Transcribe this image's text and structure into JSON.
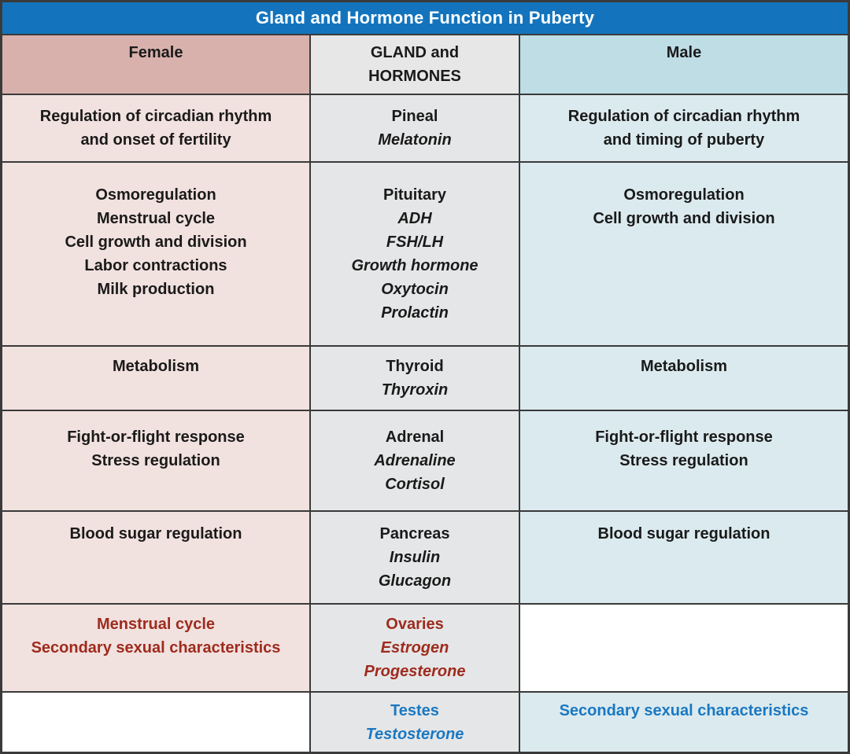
{
  "title": "Gland and Hormone Function in Puberty",
  "headers": {
    "female": "Female",
    "gland": "GLAND and\nHORMONES",
    "male": "Male"
  },
  "rows": [
    {
      "id": "pineal",
      "female": [
        "Regulation of circadian rhythm",
        "and onset of fertility"
      ],
      "gland": "Pineal",
      "hormones": [
        "Melatonin"
      ],
      "male": [
        "Regulation of circadian rhythm",
        "and timing of puberty"
      ],
      "accent": null
    },
    {
      "id": "pituitary",
      "female": [
        "Osmoregulation",
        "Menstrual cycle",
        "Cell growth and division",
        "Labor contractions",
        "Milk production"
      ],
      "gland": "Pituitary",
      "hormones": [
        "ADH",
        "FSH/LH",
        "Growth hormone",
        "Oxytocin",
        "Prolactin"
      ],
      "male": [
        "Osmoregulation",
        "Cell growth and division"
      ],
      "accent": null
    },
    {
      "id": "thyroid",
      "female": [
        "Metabolism"
      ],
      "gland": "Thyroid",
      "hormones": [
        "Thyroxin"
      ],
      "male": [
        "Metabolism"
      ],
      "accent": null
    },
    {
      "id": "adrenal",
      "female": [
        "Fight-or-flight response",
        "Stress regulation"
      ],
      "gland": "Adrenal",
      "hormones": [
        "Adrenaline",
        "Cortisol"
      ],
      "male": [
        "Fight-or-flight response",
        "Stress regulation"
      ],
      "accent": null
    },
    {
      "id": "pancreas",
      "female": [
        "Blood sugar regulation"
      ],
      "gland": "Pancreas",
      "hormones": [
        "Insulin",
        "Glucagon"
      ],
      "male": [
        "Blood sugar regulation"
      ],
      "accent": null
    },
    {
      "id": "ovaries",
      "female": [
        "Menstrual cycle",
        "Secondary sexual characteristics"
      ],
      "gland": "Ovaries",
      "hormones": [
        "Estrogen",
        "Progesterone"
      ],
      "male": [],
      "accent": "red"
    },
    {
      "id": "testes",
      "female": [],
      "gland": "Testes",
      "hormones": [
        "Testosterone"
      ],
      "male": [
        "Secondary sexual characteristics"
      ],
      "accent": "blue"
    }
  ],
  "colors": {
    "title_bg": "#1374bd",
    "title_text": "#ffffff",
    "female_header_bg": "#d9b1ac",
    "female_cell_bg": "#f1e1df",
    "gland_header_bg": "#e7e7e7",
    "gland_cell_bg": "#e5e6e7",
    "male_header_bg": "#bedde5",
    "male_cell_bg": "#dbeaee",
    "empty_cell_bg": "#ffffff",
    "grid_line": "#3a3a3a",
    "text": "#1a1a1a",
    "accent_red": "#9e2b1e",
    "accent_blue": "#1a78c2"
  },
  "chart_data": {
    "type": "table",
    "title": "Gland and Hormone Function in Puberty",
    "columns": [
      "Female",
      "GLAND and HORMONES",
      "Male"
    ],
    "rows": [
      [
        "Regulation of circadian rhythm and onset of fertility",
        "Pineal (Melatonin)",
        "Regulation of circadian rhythm and timing of puberty"
      ],
      [
        "Osmoregulation; Menstrual cycle; Cell growth and division; Labor contractions; Milk production",
        "Pituitary (ADH, FSH/LH, Growth hormone, Oxytocin, Prolactin)",
        "Osmoregulation; Cell growth and division"
      ],
      [
        "Metabolism",
        "Thyroid (Thyroxin)",
        "Metabolism"
      ],
      [
        "Fight-or-flight response; Stress regulation",
        "Adrenal (Adrenaline, Cortisol)",
        "Fight-or-flight response; Stress regulation"
      ],
      [
        "Blood sugar regulation",
        "Pancreas (Insulin, Glucagon)",
        "Blood sugar regulation"
      ],
      [
        "Menstrual cycle; Secondary sexual characteristics",
        "Ovaries (Estrogen, Progesterone)",
        ""
      ],
      [
        "",
        "Testes (Testosterone)",
        "Secondary sexual characteristics"
      ]
    ]
  }
}
